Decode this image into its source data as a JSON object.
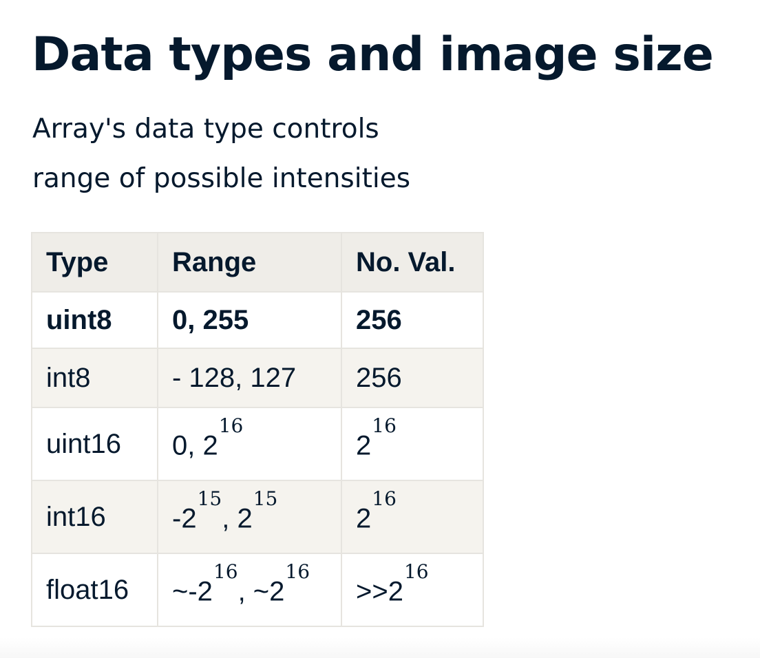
{
  "slide": {
    "title": "Data types and image size",
    "subtitle_lines": [
      "Array's data type controls",
      "range of possible intensities"
    ]
  },
  "table": {
    "headers": [
      "Type",
      "Range",
      "No. Val."
    ],
    "rows": [
      {
        "type": "uint8",
        "range": [
          {
            "text": "0, 255"
          }
        ],
        "no_val": [
          {
            "text": "256"
          }
        ]
      },
      {
        "type": "int8",
        "range": [
          {
            "text": "- 128, 127"
          }
        ],
        "no_val": [
          {
            "text": "256"
          }
        ]
      },
      {
        "type": "uint16",
        "range": [
          {
            "text": "0, 2"
          },
          {
            "text": "16",
            "sup": true
          }
        ],
        "no_val": [
          {
            "text": "2"
          },
          {
            "text": "16",
            "sup": true
          }
        ]
      },
      {
        "type": "int16",
        "range": [
          {
            "text": "-2"
          },
          {
            "text": "15",
            "sup": true
          },
          {
            "text": ", 2"
          },
          {
            "text": "15",
            "sup": true
          }
        ],
        "no_val": [
          {
            "text": "2"
          },
          {
            "text": "16",
            "sup": true
          }
        ]
      },
      {
        "type": "float16",
        "range": [
          {
            "text": "~-2"
          },
          {
            "text": "16",
            "sup": true
          },
          {
            "text": ", ~2"
          },
          {
            "text": "16",
            "sup": true
          }
        ],
        "no_val": [
          {
            "text": ">>2"
          },
          {
            "text": "16",
            "sup": true
          }
        ]
      }
    ]
  }
}
